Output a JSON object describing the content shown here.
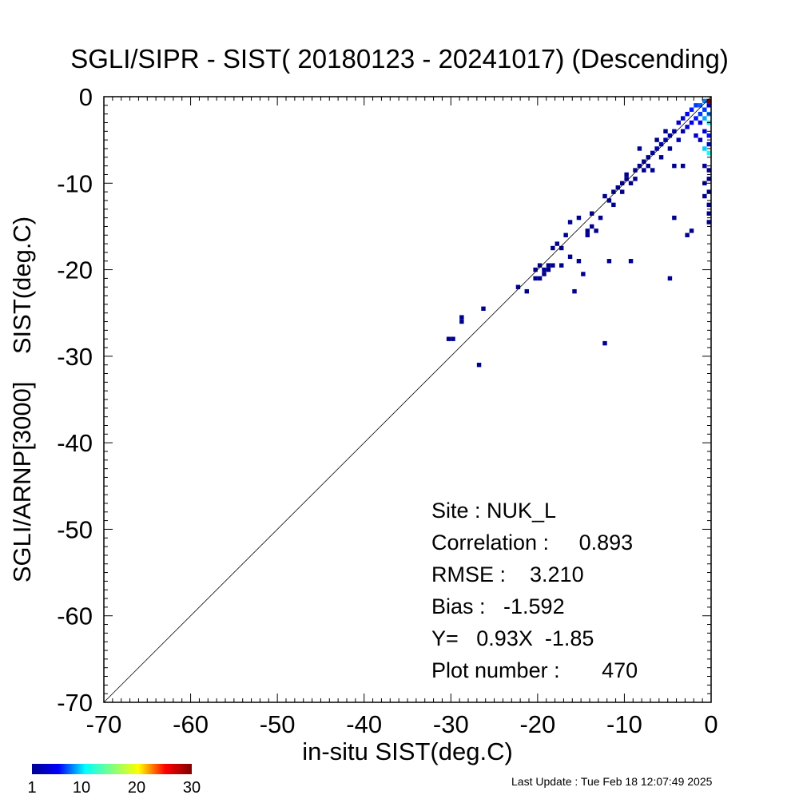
{
  "chart_data": {
    "type": "scatter",
    "title": "SGLI/SIPR - SIST( 20180123 - 20241017) (Descending)",
    "xlabel": "in-situ SIST(deg.C)",
    "ylabel": "SGLI/ARNP[3000]    SIST(deg.C)",
    "xlim": [
      -70,
      0
    ],
    "ylim": [
      -70,
      0
    ],
    "xticks": [
      "-70",
      "-60",
      "-50",
      "-40",
      "-30",
      "-20",
      "-10",
      "0"
    ],
    "yticks": [
      "0",
      "-10",
      "-20",
      "-30",
      "-40",
      "-50",
      "-60",
      "-70"
    ],
    "reference_line": "1:1",
    "cell_size": 0.5,
    "colorbar": {
      "ticks": [
        "1",
        "10",
        "20",
        "30"
      ],
      "range": [
        1,
        30
      ]
    },
    "points": [
      {
        "x": -30.0,
        "y": -28.0,
        "count": 1
      },
      {
        "x": -29.5,
        "y": -28.0,
        "count": 1
      },
      {
        "x": -28.5,
        "y": -25.5,
        "count": 1
      },
      {
        "x": -28.5,
        "y": -26.0,
        "count": 1
      },
      {
        "x": -26.5,
        "y": -31.0,
        "count": 1
      },
      {
        "x": -26.0,
        "y": -24.5,
        "count": 1
      },
      {
        "x": -22.0,
        "y": -22.0,
        "count": 1
      },
      {
        "x": -21.0,
        "y": -22.5,
        "count": 1
      },
      {
        "x": -20.0,
        "y": -20.0,
        "count": 1
      },
      {
        "x": -20.0,
        "y": -21.0,
        "count": 1
      },
      {
        "x": -19.5,
        "y": -19.5,
        "count": 1
      },
      {
        "x": -19.5,
        "y": -21.0,
        "count": 1
      },
      {
        "x": -19.0,
        "y": -20.0,
        "count": 1
      },
      {
        "x": -19.0,
        "y": -20.5,
        "count": 1
      },
      {
        "x": -18.5,
        "y": -20.0,
        "count": 1
      },
      {
        "x": -18.5,
        "y": -19.5,
        "count": 1
      },
      {
        "x": -18.0,
        "y": -19.5,
        "count": 1
      },
      {
        "x": -18.0,
        "y": -17.5,
        "count": 1
      },
      {
        "x": -17.5,
        "y": -17.0,
        "count": 1
      },
      {
        "x": -17.0,
        "y": -17.5,
        "count": 1
      },
      {
        "x": -17.0,
        "y": -19.5,
        "count": 1
      },
      {
        "x": -16.5,
        "y": -16.0,
        "count": 1
      },
      {
        "x": -16.0,
        "y": -14.5,
        "count": 1
      },
      {
        "x": -16.0,
        "y": -18.5,
        "count": 1
      },
      {
        "x": -15.5,
        "y": -22.5,
        "count": 1
      },
      {
        "x": -15.0,
        "y": -14.0,
        "count": 1
      },
      {
        "x": -15.0,
        "y": -19.0,
        "count": 1
      },
      {
        "x": -14.5,
        "y": -20.5,
        "count": 1
      },
      {
        "x": -14.0,
        "y": -15.5,
        "count": 1
      },
      {
        "x": -14.0,
        "y": -16.0,
        "count": 1
      },
      {
        "x": -13.5,
        "y": -15.0,
        "count": 1
      },
      {
        "x": -13.5,
        "y": -13.5,
        "count": 1
      },
      {
        "x": -13.0,
        "y": -15.5,
        "count": 1
      },
      {
        "x": -12.5,
        "y": -14.0,
        "count": 1
      },
      {
        "x": -12.0,
        "y": -28.5,
        "count": 1
      },
      {
        "x": -11.5,
        "y": -19.0,
        "count": 1
      },
      {
        "x": -12.0,
        "y": -11.5,
        "count": 1
      },
      {
        "x": -11.5,
        "y": -12.0,
        "count": 1
      },
      {
        "x": -11.0,
        "y": -11.0,
        "count": 1
      },
      {
        "x": -11.0,
        "y": -12.5,
        "count": 1
      },
      {
        "x": -10.5,
        "y": -10.5,
        "count": 1
      },
      {
        "x": -10.0,
        "y": -10.0,
        "count": 1
      },
      {
        "x": -10.0,
        "y": -11.0,
        "count": 1
      },
      {
        "x": -9.5,
        "y": -9.5,
        "count": 1
      },
      {
        "x": -9.5,
        "y": -9.0,
        "count": 1
      },
      {
        "x": -9.0,
        "y": -19.0,
        "count": 1
      },
      {
        "x": -9.0,
        "y": -10.0,
        "count": 1
      },
      {
        "x": -8.5,
        "y": -8.5,
        "count": 1
      },
      {
        "x": -8.5,
        "y": -9.5,
        "count": 1
      },
      {
        "x": -8.0,
        "y": -8.0,
        "count": 1
      },
      {
        "x": -8.0,
        "y": -6.0,
        "count": 1
      },
      {
        "x": -7.5,
        "y": -7.5,
        "count": 1
      },
      {
        "x": -7.5,
        "y": -8.5,
        "count": 1
      },
      {
        "x": -7.0,
        "y": -7.0,
        "count": 1
      },
      {
        "x": -7.0,
        "y": -8.0,
        "count": 1
      },
      {
        "x": -6.5,
        "y": -6.5,
        "count": 2
      },
      {
        "x": -6.5,
        "y": -8.5,
        "count": 1
      },
      {
        "x": -6.0,
        "y": -6.0,
        "count": 2
      },
      {
        "x": -6.0,
        "y": -5.0,
        "count": 1
      },
      {
        "x": -5.5,
        "y": -5.5,
        "count": 2
      },
      {
        "x": -5.5,
        "y": -7.0,
        "count": 1
      },
      {
        "x": -5.0,
        "y": -5.0,
        "count": 2
      },
      {
        "x": -5.0,
        "y": -4.0,
        "count": 1
      },
      {
        "x": -4.5,
        "y": -4.5,
        "count": 2
      },
      {
        "x": -4.5,
        "y": -6.0,
        "count": 1
      },
      {
        "x": -4.5,
        "y": -21.0,
        "count": 1
      },
      {
        "x": -4.0,
        "y": -4.0,
        "count": 2
      },
      {
        "x": -4.0,
        "y": -14.0,
        "count": 1
      },
      {
        "x": -4.0,
        "y": -8.0,
        "count": 1
      },
      {
        "x": -3.5,
        "y": -3.0,
        "count": 3
      },
      {
        "x": -3.5,
        "y": -5.0,
        "count": 2
      },
      {
        "x": -3.0,
        "y": -2.5,
        "count": 3
      },
      {
        "x": -3.0,
        "y": -4.0,
        "count": 2
      },
      {
        "x": -3.0,
        "y": -8.0,
        "count": 1
      },
      {
        "x": -2.5,
        "y": -2.0,
        "count": 4
      },
      {
        "x": -2.5,
        "y": -3.5,
        "count": 3
      },
      {
        "x": -2.5,
        "y": -16.0,
        "count": 1
      },
      {
        "x": -2.0,
        "y": -1.5,
        "count": 5
      },
      {
        "x": -2.0,
        "y": -3.0,
        "count": 4
      },
      {
        "x": -2.0,
        "y": -15.5,
        "count": 1
      },
      {
        "x": -1.5,
        "y": -1.0,
        "count": 6
      },
      {
        "x": -1.5,
        "y": -2.5,
        "count": 5
      },
      {
        "x": -1.5,
        "y": -4.5,
        "count": 3
      },
      {
        "x": -1.0,
        "y": -1.0,
        "count": 7
      },
      {
        "x": -1.0,
        "y": -2.0,
        "count": 6
      },
      {
        "x": -1.0,
        "y": -3.0,
        "count": 4
      },
      {
        "x": -1.0,
        "y": -5.0,
        "count": 2
      },
      {
        "x": -0.5,
        "y": -0.5,
        "count": 8
      },
      {
        "x": -0.5,
        "y": -1.5,
        "count": 6
      },
      {
        "x": -0.5,
        "y": -2.5,
        "count": 9
      },
      {
        "x": -0.5,
        "y": -4.0,
        "count": 3
      },
      {
        "x": -0.5,
        "y": -6.0,
        "count": 10
      },
      {
        "x": -0.5,
        "y": -8.0,
        "count": 1
      },
      {
        "x": -0.5,
        "y": -10.0,
        "count": 1
      },
      {
        "x": -0.5,
        "y": -11.5,
        "count": 1
      },
      {
        "x": 0.0,
        "y": -0.5,
        "count": 30
      },
      {
        "x": 0.0,
        "y": -1.0,
        "count": 4
      },
      {
        "x": 0.0,
        "y": -2.0,
        "count": 8
      },
      {
        "x": 0.0,
        "y": -3.0,
        "count": 11
      },
      {
        "x": 0.0,
        "y": -4.5,
        "count": 5
      },
      {
        "x": 0.0,
        "y": -5.5,
        "count": 3
      },
      {
        "x": 0.0,
        "y": -6.5,
        "count": 12
      },
      {
        "x": 0.0,
        "y": -8.5,
        "count": 1
      },
      {
        "x": 0.0,
        "y": -9.5,
        "count": 1
      },
      {
        "x": 0.0,
        "y": -11.0,
        "count": 1
      },
      {
        "x": 0.0,
        "y": -12.5,
        "count": 1
      },
      {
        "x": 0.0,
        "y": -13.5,
        "count": 1
      },
      {
        "x": 0.0,
        "y": -14.5,
        "count": 1
      }
    ]
  },
  "stats": {
    "site": "Site : NUK_L",
    "correlation": "Correlation :     0.893",
    "rmse": "RMSE :    3.210",
    "bias": "Bias :   -1.592",
    "regression": "Y=   0.93X  -1.85",
    "plot_number": "Plot number :       470"
  },
  "last_update": "Last Update : Tue Feb 18 12:07:49 2025"
}
